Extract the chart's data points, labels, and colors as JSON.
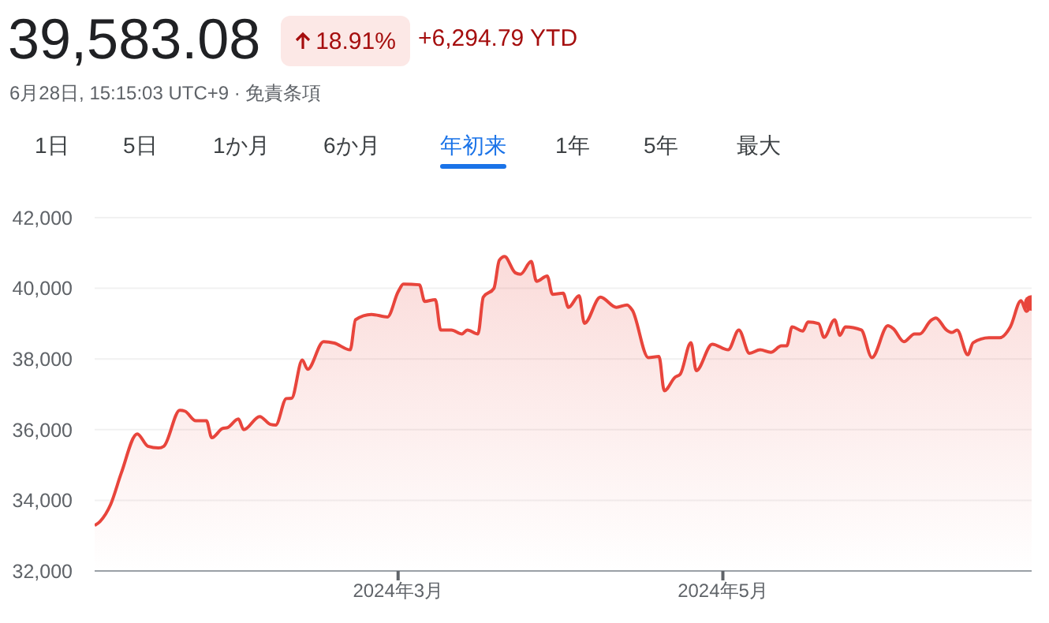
{
  "chart_data": {
    "type": "area",
    "title": "39,583.08",
    "subtitle": "6月28日, 15:15:03 UTC+9 · 免責条項",
    "annotations": [
      "18.91%",
      "+6,294.79 YTD",
      "1日",
      "5日",
      "1か月",
      "6か月",
      "年初来",
      "1年",
      "5年",
      "最大"
    ],
    "x": [
      "2024-01-04",
      "2024-01-05",
      "2024-01-07",
      "2024-01-09",
      "2024-01-12",
      "2024-01-14",
      "2024-01-16",
      "2024-01-17",
      "2024-01-20",
      "2024-01-21",
      "2024-01-23",
      "2024-01-25",
      "2024-01-26",
      "2024-01-28",
      "2024-01-29",
      "2024-01-31",
      "2024-02-01",
      "2024-02-04",
      "2024-02-06",
      "2024-02-07",
      "2024-02-09",
      "2024-02-10",
      "2024-02-12",
      "2024-02-13",
      "2024-02-16",
      "2024-02-18",
      "2024-02-21",
      "2024-02-22",
      "2024-02-25",
      "2024-02-28",
      "2024-03-01",
      "2024-03-02",
      "2024-03-05",
      "2024-03-06",
      "2024-03-08",
      "2024-03-09",
      "2024-03-11",
      "2024-03-13",
      "2024-03-14",
      "2024-03-16",
      "2024-03-17",
      "2024-03-19",
      "2024-03-20",
      "2024-03-21",
      "2024-03-23",
      "2024-03-24",
      "2024-03-26",
      "2024-03-27",
      "2024-03-29",
      "2024-03-30",
      "2024-04-01",
      "2024-04-02",
      "2024-04-04",
      "2024-04-05",
      "2024-04-08",
      "2024-04-11",
      "2024-04-13",
      "2024-04-14",
      "2024-04-17",
      "2024-04-19",
      "2024-04-20",
      "2024-04-22",
      "2024-04-23",
      "2024-04-25",
      "2024-04-26",
      "2024-04-29",
      "2024-05-02",
      "2024-05-04",
      "2024-05-06",
      "2024-05-08",
      "2024-05-10",
      "2024-05-12",
      "2024-05-13",
      "2024-05-14",
      "2024-05-16",
      "2024-05-17",
      "2024-05-19",
      "2024-05-20",
      "2024-05-22",
      "2024-05-23",
      "2024-05-24",
      "2024-05-27",
      "2024-05-29",
      "2024-06-01",
      "2024-06-02",
      "2024-06-04",
      "2024-06-06",
      "2024-06-07",
      "2024-06-09",
      "2024-06-10",
      "2024-06-12",
      "2024-06-13",
      "2024-06-14",
      "2024-06-16",
      "2024-06-17",
      "2024-06-20",
      "2024-06-22",
      "2024-06-24",
      "2024-06-26",
      "2024-06-27",
      "2024-06-28"
    ],
    "series": [
      {
        "color": "#e8453c",
        "values": [
          33290,
          33400,
          33880,
          34770,
          35880,
          35530,
          35480,
          35530,
          36550,
          36520,
          36250,
          36250,
          35770,
          36030,
          36060,
          36300,
          36000,
          36370,
          36150,
          36130,
          36880,
          36890,
          37970,
          37710,
          38490,
          38450,
          38260,
          39110,
          39260,
          39190,
          39900,
          40120,
          40100,
          39630,
          39680,
          38820,
          38820,
          38710,
          38820,
          38710,
          39750,
          40000,
          40790,
          40900,
          40440,
          40400,
          40760,
          40200,
          40350,
          39830,
          39860,
          39460,
          39790,
          39010,
          39750,
          39460,
          39530,
          39380,
          38040,
          38070,
          37100,
          37480,
          37570,
          38460,
          37670,
          38420,
          38260,
          38820,
          38160,
          38260,
          38190,
          38370,
          38370,
          38910,
          38790,
          39050,
          39000,
          38610,
          39110,
          38670,
          38910,
          38820,
          38040,
          38940,
          38860,
          38490,
          38710,
          38710,
          39080,
          39160,
          38820,
          38750,
          38820,
          38120,
          38460,
          38600,
          38600,
          38910,
          39650,
          39350,
          39583
        ]
      }
    ],
    "xlim": [
      "2024-01-04",
      "2024-06-28"
    ],
    "xticks": [
      {
        "value": "2024-03-01",
        "label": "2024年3月"
      },
      {
        "value": "2024-05-01",
        "label": "2024年5月"
      }
    ],
    "ylim": [
      32000,
      42000
    ],
    "yticks": [
      {
        "value": 32000,
        "label": "32,000"
      },
      {
        "value": 34000,
        "label": "34,000"
      },
      {
        "value": 36000,
        "label": "36,000"
      },
      {
        "value": 38000,
        "label": "38,000"
      },
      {
        "value": 40000,
        "label": "40,000"
      },
      {
        "value": 42000,
        "label": "42,000"
      }
    ],
    "grid": "y"
  }
}
